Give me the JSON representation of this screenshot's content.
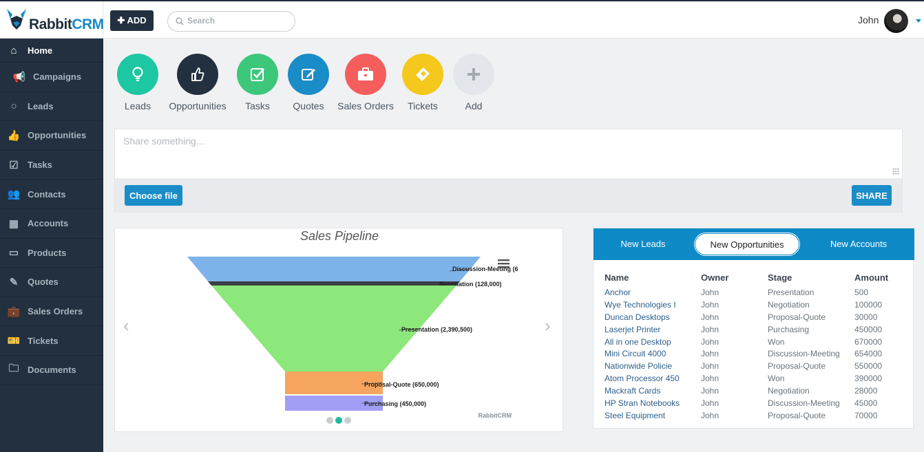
{
  "brand": {
    "name_part1": "Rabbit",
    "name_part2": "CRM"
  },
  "header": {
    "add_label": "ADD",
    "search_placeholder": "Search",
    "user_name": "John"
  },
  "sidebar": {
    "items": [
      {
        "label": "Home",
        "icon": "home-icon"
      },
      {
        "label": "Campaigns",
        "icon": "megaphone-icon"
      },
      {
        "label": "Leads",
        "icon": "lightbulb-icon"
      },
      {
        "label": "Opportunities",
        "icon": "thumbs-up-icon"
      },
      {
        "label": "Tasks",
        "icon": "checkbox-icon"
      },
      {
        "label": "Contacts",
        "icon": "users-icon"
      },
      {
        "label": "Accounts",
        "icon": "building-icon"
      },
      {
        "label": "Products",
        "icon": "inbox-icon"
      },
      {
        "label": "Quotes",
        "icon": "edit-icon"
      },
      {
        "label": "Sales Orders",
        "icon": "briefcase-icon"
      },
      {
        "label": "Tickets",
        "icon": "ticket-icon"
      },
      {
        "label": "Documents",
        "icon": "folder-icon"
      }
    ]
  },
  "quick_actions": [
    {
      "label": "Leads",
      "icon": "lightbulb-icon",
      "color": "#1cc7a2"
    },
    {
      "label": "Opportunities",
      "icon": "thumbs-up-icon",
      "color": "#22303f"
    },
    {
      "label": "Tasks",
      "icon": "checkbox-icon",
      "color": "#3cc77b"
    },
    {
      "label": "Quotes",
      "icon": "edit-icon",
      "color": "#1a8cc7"
    },
    {
      "label": "Sales Orders",
      "icon": "briefcase-icon",
      "color": "#f65e5e"
    },
    {
      "label": "Tickets",
      "icon": "ticket-icon",
      "color": "#f4c81c"
    },
    {
      "label": "Add",
      "icon": "plus-icon",
      "color": "#e3e6ea"
    }
  ],
  "share": {
    "placeholder": "Share something...",
    "choose_file_label": "Choose file",
    "share_label": "SHARE"
  },
  "chart_data": {
    "type": "funnel",
    "title": "Sales Pipeline",
    "credit": "RabbitCRM",
    "stages": [
      {
        "label": "Discussion-Meeting (6",
        "value": null,
        "color": "#7eb3ea"
      },
      {
        "label": "Negotiation (128,000)",
        "value": 128000,
        "color": "#3a3f45"
      },
      {
        "label": "Presentation (2,390,500)",
        "value": 2390500,
        "color": "#8ce87a"
      },
      {
        "label": "Proposal-Quote (650,000)",
        "value": 650000,
        "color": "#f6a55e"
      },
      {
        "label": "Purchasing (450,000)",
        "value": 450000,
        "color": "#a09ff5"
      }
    ]
  },
  "opps_panel": {
    "tabs": [
      "New Leads",
      "New Opportunities",
      "New Accounts"
    ],
    "active_tab": 1,
    "columns": [
      "Name",
      "Owner",
      "Stage",
      "Amount"
    ],
    "rows": [
      [
        "Anchor",
        "John",
        "Presentation",
        "500"
      ],
      [
        "Wye Technologies I",
        "John",
        "Negotiation",
        "100000"
      ],
      [
        "Duncan Desktops",
        "John",
        "Proposal-Quote",
        "30000"
      ],
      [
        "Laserjet Printer",
        "John",
        "Purchasing",
        "450000"
      ],
      [
        "All in one Desktop",
        "John",
        "Won",
        "670000"
      ],
      [
        "Mini Circuit 4000",
        "John",
        "Discussion-Meeting",
        "654000"
      ],
      [
        "Nationwide Policie",
        "John",
        "Proposal-Quote",
        "550000"
      ],
      [
        "Atom Processor 450",
        "John",
        "Won",
        "390000"
      ],
      [
        "Mackraft Cards",
        "John",
        "Negotiation",
        "28000"
      ],
      [
        "HP Stran Notebooks",
        "John",
        "Discussion-Meeting",
        "45000"
      ],
      [
        "Steel Equipment",
        "John",
        "Proposal-Quote",
        "70000"
      ]
    ]
  }
}
